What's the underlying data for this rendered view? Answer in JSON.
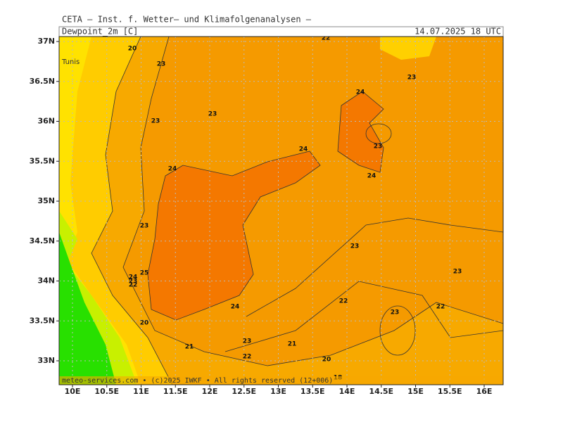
{
  "header": {
    "title": "CETA – Inst. f. Wetter– und Klimafolgenanalysen –",
    "parameter": "Dewpoint_2m [C]",
    "valid_time": "14.07.2025 18 UTC"
  },
  "map": {
    "lat_labels": [
      "37N",
      "36.5N",
      "36N",
      "35.5N",
      "35N",
      "34.5N",
      "34N",
      "33.5N",
      "33N"
    ],
    "lon_labels": [
      "10E",
      "10.5E",
      "11E",
      "11.5E",
      "12E",
      "12.5E",
      "13E",
      "13.5E",
      "14E",
      "14.5E",
      "15E",
      "15.5E",
      "16E"
    ],
    "places": [
      "Tunis"
    ],
    "contour_labels": [
      "20",
      "23",
      "22",
      "23",
      "24",
      "23",
      "23",
      "24",
      "23",
      "24",
      "24",
      "23",
      "23",
      "23",
      "25",
      "24",
      "23",
      "22",
      "22",
      "24",
      "23",
      "22",
      "20",
      "23",
      "21",
      "21",
      "22",
      "20",
      "18"
    ]
  },
  "footer": "meteo-services.com • (c)2025 IWKF • All rights reserved (12+006)"
}
